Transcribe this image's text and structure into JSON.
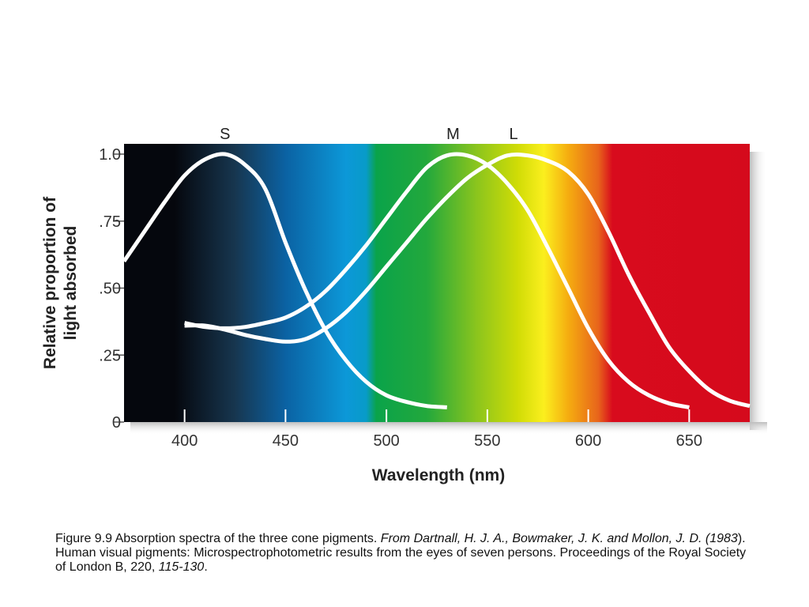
{
  "chart_data": {
    "type": "line",
    "xlabel": "Wavelength (nm)",
    "ylabel_lines": [
      "Relative proportion of",
      "light absorbed"
    ],
    "x_ticks": [
      400,
      450,
      500,
      550,
      600,
      650
    ],
    "y_ticks": [
      {
        "value": 0,
        "label": "0"
      },
      {
        "value": 0.25,
        "label": ".25"
      },
      {
        "value": 0.5,
        "label": ".50"
      },
      {
        "value": 0.75,
        "label": ".75"
      },
      {
        "value": 1.0,
        "label": "1.0"
      }
    ],
    "xlim": [
      370,
      680
    ],
    "ylim": [
      0,
      1.0
    ],
    "background": "visible spectrum gradient",
    "spectrum_stops": [
      {
        "nm": 370,
        "color": "#05070d"
      },
      {
        "nm": 395,
        "color": "#05070d"
      },
      {
        "nm": 425,
        "color": "#17364f"
      },
      {
        "nm": 450,
        "color": "#0b62a3"
      },
      {
        "nm": 480,
        "color": "#0c98d8"
      },
      {
        "nm": 490,
        "color": "#089bc8"
      },
      {
        "nm": 495,
        "color": "#0aa34a"
      },
      {
        "nm": 520,
        "color": "#23a83c"
      },
      {
        "nm": 545,
        "color": "#8cc51d"
      },
      {
        "nm": 565,
        "color": "#d0dc06"
      },
      {
        "nm": 578,
        "color": "#fbef1e"
      },
      {
        "nm": 590,
        "color": "#f5ad10"
      },
      {
        "nm": 605,
        "color": "#e8641b"
      },
      {
        "nm": 612,
        "color": "#d80b1d"
      },
      {
        "nm": 680,
        "color": "#d50a1c"
      }
    ],
    "series": [
      {
        "name": "S",
        "label_at": 420,
        "points": [
          [
            370,
            0.6
          ],
          [
            380,
            0.71
          ],
          [
            390,
            0.82
          ],
          [
            400,
            0.92
          ],
          [
            410,
            0.98
          ],
          [
            420,
            1.0
          ],
          [
            430,
            0.96
          ],
          [
            440,
            0.87
          ],
          [
            450,
            0.67
          ],
          [
            460,
            0.49
          ],
          [
            470,
            0.34
          ],
          [
            480,
            0.23
          ],
          [
            490,
            0.15
          ],
          [
            500,
            0.1
          ],
          [
            510,
            0.075
          ],
          [
            520,
            0.06
          ],
          [
            530,
            0.055
          ]
        ]
      },
      {
        "name": "M",
        "label_at": 533,
        "points": [
          [
            400,
            0.37
          ],
          [
            410,
            0.355
          ],
          [
            420,
            0.35
          ],
          [
            430,
            0.355
          ],
          [
            440,
            0.37
          ],
          [
            450,
            0.39
          ],
          [
            460,
            0.43
          ],
          [
            470,
            0.49
          ],
          [
            480,
            0.57
          ],
          [
            490,
            0.66
          ],
          [
            500,
            0.76
          ],
          [
            510,
            0.86
          ],
          [
            520,
            0.95
          ],
          [
            530,
            0.995
          ],
          [
            540,
            0.995
          ],
          [
            550,
            0.96
          ],
          [
            560,
            0.89
          ],
          [
            570,
            0.79
          ],
          [
            580,
            0.65
          ],
          [
            590,
            0.5
          ],
          [
            600,
            0.35
          ],
          [
            610,
            0.23
          ],
          [
            620,
            0.15
          ],
          [
            630,
            0.1
          ],
          [
            640,
            0.07
          ],
          [
            650,
            0.055
          ]
        ]
      },
      {
        "name": "L",
        "label_at": 563,
        "points": [
          [
            400,
            0.36
          ],
          [
            410,
            0.36
          ],
          [
            420,
            0.345
          ],
          [
            430,
            0.325
          ],
          [
            440,
            0.31
          ],
          [
            450,
            0.3
          ],
          [
            460,
            0.31
          ],
          [
            470,
            0.35
          ],
          [
            480,
            0.41
          ],
          [
            490,
            0.49
          ],
          [
            500,
            0.58
          ],
          [
            510,
            0.67
          ],
          [
            520,
            0.76
          ],
          [
            530,
            0.84
          ],
          [
            540,
            0.91
          ],
          [
            550,
            0.96
          ],
          [
            560,
            0.995
          ],
          [
            570,
            0.995
          ],
          [
            580,
            0.975
          ],
          [
            590,
            0.935
          ],
          [
            600,
            0.85
          ],
          [
            610,
            0.71
          ],
          [
            620,
            0.55
          ],
          [
            630,
            0.41
          ],
          [
            640,
            0.28
          ],
          [
            650,
            0.19
          ],
          [
            660,
            0.12
          ],
          [
            670,
            0.08
          ],
          [
            680,
            0.06
          ]
        ]
      }
    ]
  },
  "caption": {
    "prefix": "Figure 9.9 Absorption spectra of the three cone pigments. ",
    "citation": "From Dartnall, H. J. A., Bowmaker, J. K. and Mollon, J. D. (1983",
    "middle": "). Human visual pigments: Microspectrophotometric results from the eyes of seven persons. Proceedings of the Royal Society of London B, 220, ",
    "pages": "115-130",
    "suffix": "."
  }
}
